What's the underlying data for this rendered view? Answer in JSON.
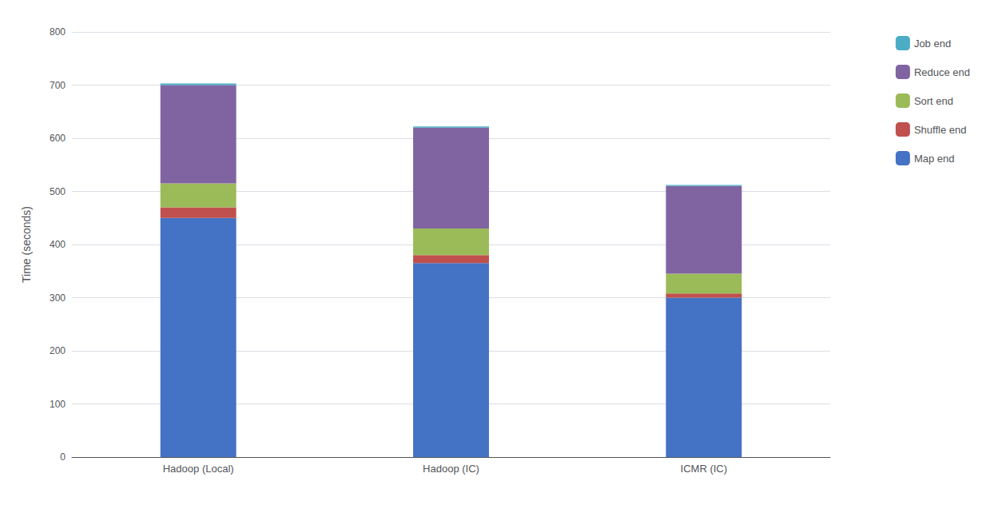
{
  "chart_data": {
    "type": "bar",
    "stacked": true,
    "categories": [
      "Hadoop (Local)",
      "Hadoop (IC)",
      "ICMR (IC)"
    ],
    "series": [
      {
        "name": "Map end",
        "color": "#4472C4",
        "values": [
          450,
          365,
          300
        ]
      },
      {
        "name": "Shuffle end",
        "color": "#C0504D",
        "values": [
          20,
          15,
          8
        ]
      },
      {
        "name": "Sort end",
        "color": "#9BBB59",
        "values": [
          45,
          50,
          37
        ]
      },
      {
        "name": "Reduce end",
        "color": "#8064A2",
        "values": [
          185,
          190,
          165
        ]
      },
      {
        "name": "Job end",
        "color": "#4BACC6",
        "values": [
          3,
          2,
          2
        ]
      }
    ],
    "ylabel": "Time (seconds)",
    "ylim": [
      0,
      800
    ],
    "yticks": [
      0,
      100,
      200,
      300,
      400,
      500,
      600,
      700,
      800
    ],
    "grid": true,
    "legend": "right"
  }
}
